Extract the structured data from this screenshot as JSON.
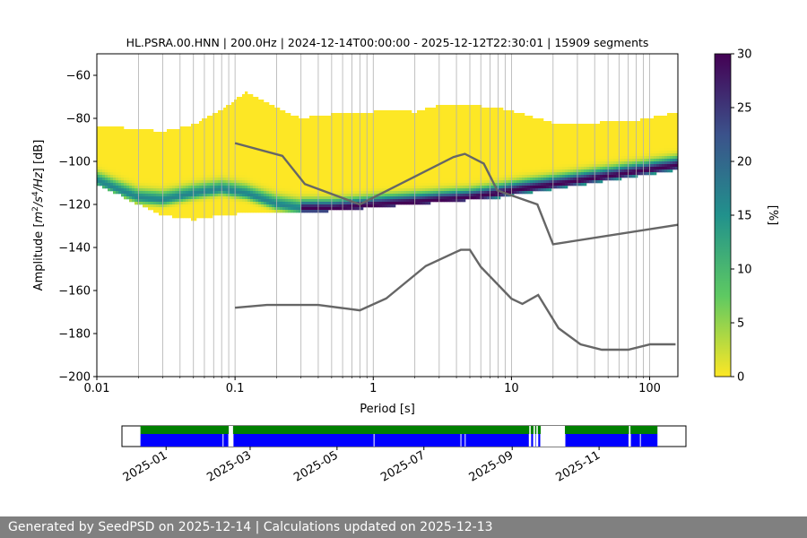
{
  "footer": {
    "text": "Generated by SeedPSD on 2025-12-14 | Calculations updated on 2025-12-13"
  },
  "colors": {
    "noise_model_lines": "#666666",
    "availability_data": "#008000",
    "availability_gaps_bar": "#0000ff",
    "footer_background": "#808080",
    "grid": "#b0b0b0",
    "colormap": [
      "#fde725",
      "#5ec962",
      "#21918c",
      "#3b528b",
      "#440154"
    ]
  },
  "chart_data": [
    {
      "type": "heatmap",
      "title": "HL.PSRA.00.HNN | 200.0Hz | 2024-12-14T00:00:00 - 2025-12-12T22:30:01 | 15909 segments",
      "xlabel": "Period [s]",
      "ylabel": "Amplitude [m²/s⁴/Hz] [dB]",
      "xscale": "log",
      "xlim": [
        0.01,
        160
      ],
      "ylim": [
        -200,
        -50
      ],
      "xticks": [
        0.01,
        0.1,
        1,
        10,
        100
      ],
      "xtick_labels": [
        "0.01",
        "0.1",
        "1",
        "10",
        "100"
      ],
      "yticks": [
        -200,
        -180,
        -160,
        -140,
        -120,
        -100,
        -80,
        -60
      ],
      "ytick_labels": [
        "−200",
        "−180",
        "−160",
        "−140",
        "−120",
        "−100",
        "−80",
        "−60"
      ],
      "grid": "x-minor-and-major vertical lines",
      "colorbar": {
        "label": "[%]",
        "range": [
          0,
          30
        ],
        "ticks": [
          0,
          5,
          10,
          15,
          20,
          25,
          30
        ],
        "tick_labels": [
          "0",
          "5",
          "10",
          "15",
          "20",
          "25",
          "30"
        ],
        "colormap": "viridis reversed"
      },
      "psd_mode_curve": {
        "period": [
          0.01,
          0.014,
          0.02,
          0.03,
          0.05,
          0.08,
          0.12,
          0.2,
          0.3,
          0.5,
          0.8,
          1.2,
          2,
          3,
          5,
          8,
          12,
          20,
          40,
          80,
          160
        ],
        "db": [
          -109,
          -113,
          -117,
          -118,
          -115,
          -113,
          -115,
          -120,
          -122,
          -122,
          -121,
          -120,
          -119,
          -118,
          -117,
          -115,
          -113,
          -111,
          -108,
          -105,
          -102
        ]
      },
      "psd_extent": {
        "period": [
          0.01,
          0.014,
          0.02,
          0.03,
          0.05,
          0.08,
          0.12,
          0.2,
          0.3,
          0.5,
          0.8,
          1.2,
          2,
          3,
          5,
          8,
          12,
          20,
          40,
          80,
          160
        ],
        "upper_db": [
          -84,
          -84,
          -85,
          -86,
          -83,
          -76,
          -68,
          -75,
          -80,
          -78,
          -78,
          -76,
          -77,
          -74,
          -74,
          -75,
          -78,
          -82,
          -82,
          -81,
          -77
        ],
        "lower_db": [
          -111,
          -115,
          -120,
          -125,
          -127,
          -125,
          -124,
          -124,
          -124,
          -123,
          -122,
          -121,
          -120,
          -119,
          -118,
          -117,
          -115,
          -113,
          -110,
          -107,
          -104
        ]
      },
      "nhnm": {
        "period": [
          0.1,
          0.22,
          0.32,
          0.8,
          3.8,
          4.6,
          6.3,
          7.9,
          15.4,
          20,
          354.8
        ],
        "db": [
          -91.5,
          -97.4,
          -110.5,
          -120,
          -98,
          -96.5,
          -101,
          -113.5,
          -120,
          -138.5,
          -126
        ]
      },
      "nlnm": {
        "period": [
          0.1,
          0.17,
          0.4,
          0.8,
          1.24,
          2.4,
          4.3,
          5,
          6,
          10,
          12,
          15.6,
          21.9,
          31.6,
          45,
          70,
          101,
          154
        ],
        "db": [
          -168,
          -166.7,
          -166.7,
          -169.2,
          -163.7,
          -148.6,
          -141.1,
          -141.1,
          -149,
          -163.8,
          -166.2,
          -162.1,
          -177.5,
          -185,
          -187.5,
          -187.5,
          -185,
          -185
        ]
      }
    },
    {
      "type": "timeline",
      "xlabel": "",
      "date_range": [
        "2024-12-14",
        "2025-12-12"
      ],
      "xlim": [
        "2024-12-01",
        "2026-01-01"
      ],
      "xticks": [
        "2025-01-01",
        "2025-03-01",
        "2025-05-01",
        "2025-07-01",
        "2025-09-01",
        "2025-11-01"
      ],
      "xtick_labels": [
        "2025-01",
        "2025-03",
        "2025-05",
        "2025-07",
        "2025-09",
        "2025-11"
      ],
      "data_gaps": [
        [
          "2025-02-14",
          "2025-02-17"
        ],
        [
          "2025-09-13",
          "2025-09-14"
        ],
        [
          "2025-09-16",
          "2025-09-17"
        ],
        [
          "2025-09-18",
          "2025-09-19"
        ],
        [
          "2025-09-21",
          "2025-10-08"
        ],
        [
          "2025-11-22",
          "2025-11-23"
        ]
      ],
      "blue_bar_breaks": [
        "2025-02-10",
        "2025-02-14",
        "2025-02-17",
        "2025-05-27",
        "2025-07-27",
        "2025-07-30",
        "2025-09-13",
        "2025-09-14",
        "2025-09-16",
        "2025-09-17",
        "2025-09-18",
        "2025-09-19",
        "2025-09-21",
        "2025-10-08",
        "2025-11-22",
        "2025-11-23",
        "2025-11-30"
      ]
    }
  ]
}
